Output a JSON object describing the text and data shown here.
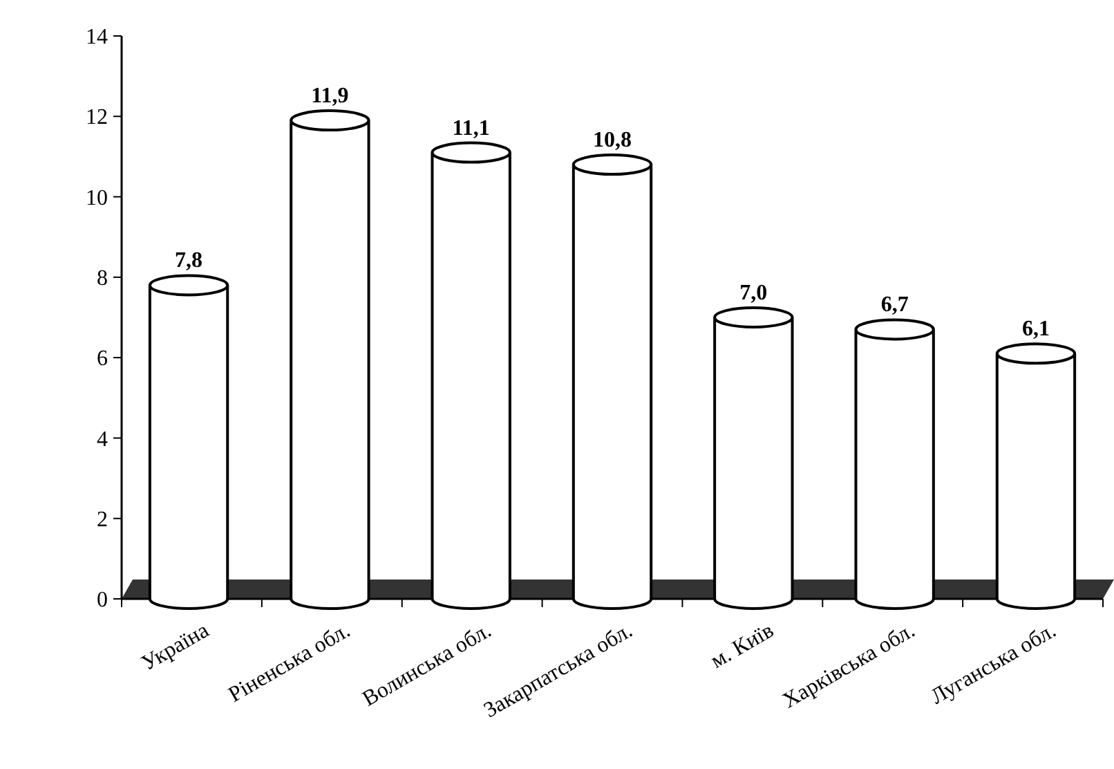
{
  "chart_data": {
    "type": "bar",
    "categories": [
      "Україна",
      "Ріненська обл.",
      "Волинська обл.",
      "Закарпатська обл.",
      "м. Київ",
      "Харківська обл.",
      "Луганська обл."
    ],
    "values": [
      7.8,
      11.9,
      11.1,
      10.8,
      7.0,
      6.7,
      6.1
    ],
    "value_labels": [
      "7,8",
      "11,9",
      "11,1",
      "10,8",
      "7,0",
      "6,7",
      "6,1"
    ],
    "color": "#ffffff",
    "ylim": [
      0,
      14
    ],
    "yticks": [
      0,
      2,
      4,
      6,
      8,
      10,
      12,
      14
    ],
    "grid": false
  }
}
